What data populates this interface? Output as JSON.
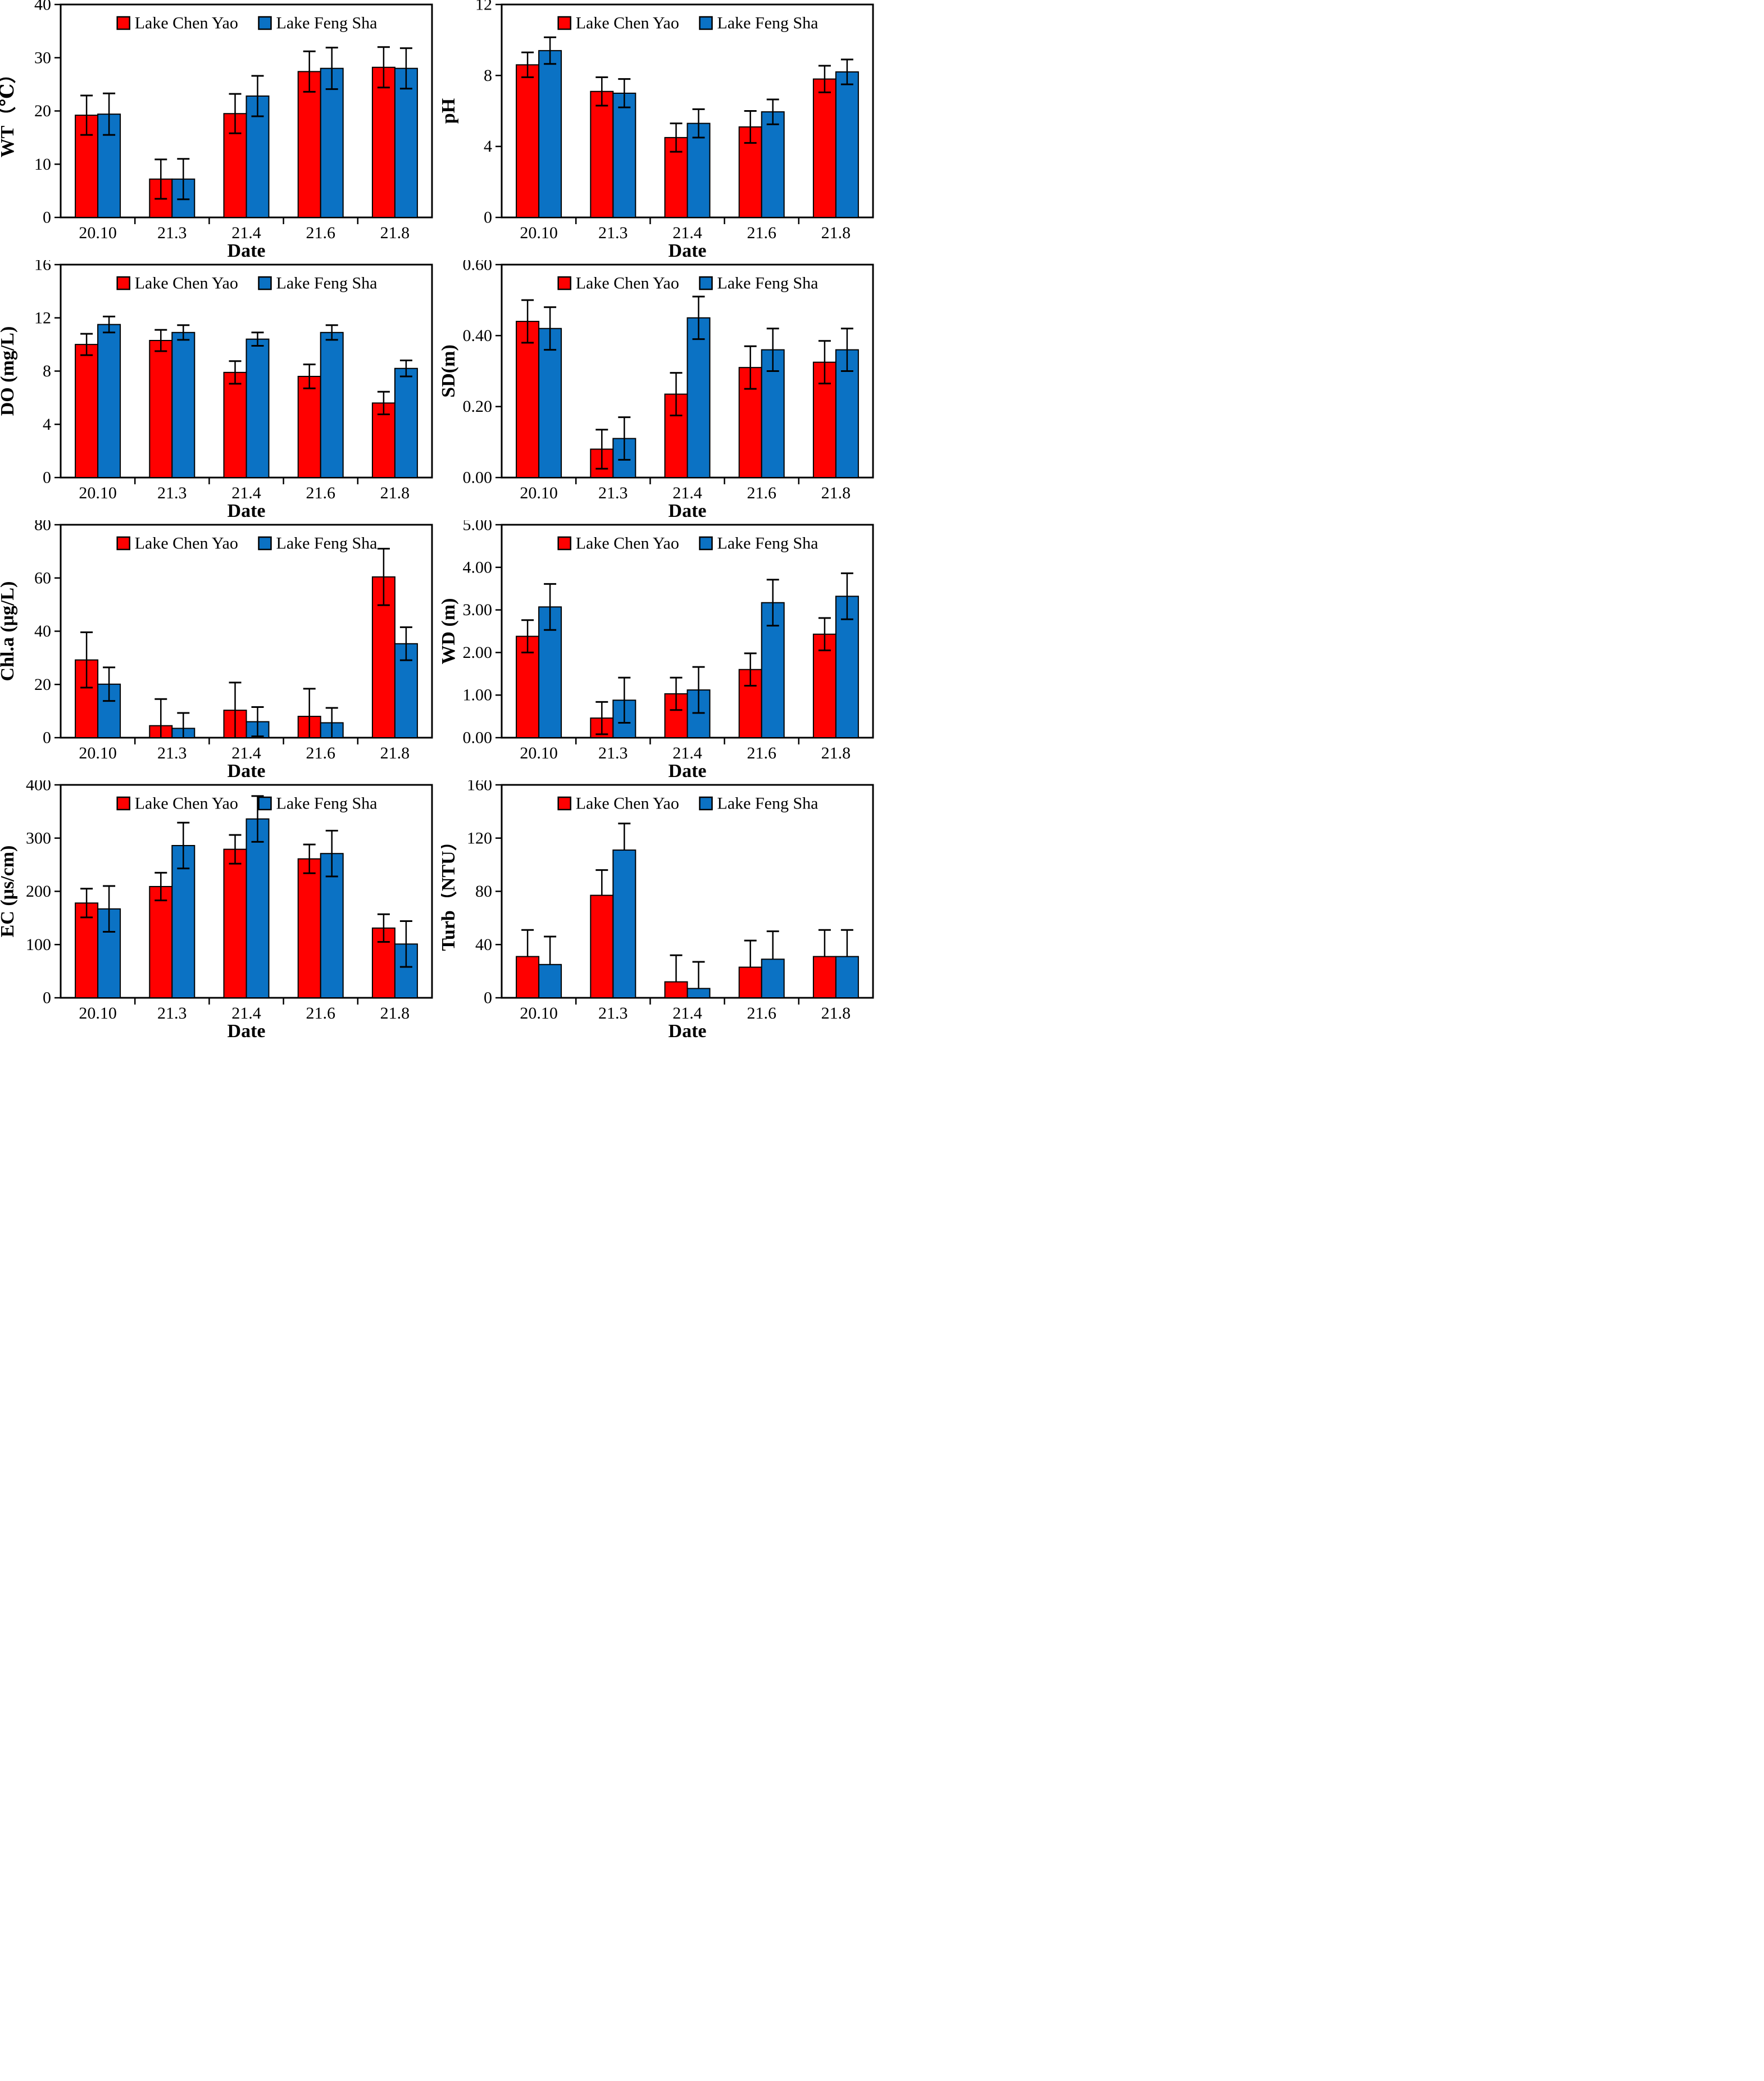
{
  "page": {
    "title": "Lake water quality seasonal bar charts",
    "background": "#FFFFFF"
  },
  "colors": {
    "series_red": "#FF0000",
    "series_blue": "#0B72C4",
    "axis": "#000000",
    "error_bar": "#000000"
  },
  "legend": {
    "items": [
      {
        "label": "Lake Chen Yao",
        "color": "#FF0000"
      },
      {
        "label": "Lake Feng Sha",
        "color": "#0B72C4"
      }
    ],
    "position": "top-center"
  },
  "chart_data": [
    {
      "id": "wt",
      "type": "bar",
      "title": "",
      "xlabel": "Date",
      "ylabel": "WT（℃）",
      "ylim": [
        0,
        40
      ],
      "ytick_vals": [
        0,
        10,
        20,
        30,
        40
      ],
      "ytick_labels": [
        "0",
        "10",
        "20",
        "30",
        "40"
      ],
      "categories": [
        "20.10",
        "21.3",
        "21.4",
        "21.6",
        "21.8"
      ],
      "grid": false,
      "legend_position": "top-center",
      "error_dir": "both",
      "series": [
        {
          "name": "Lake Chen Yao",
          "color": "#FF0000",
          "values": [
            19.2,
            7.2,
            19.5,
            27.4,
            28.2
          ],
          "errors": [
            3.7,
            3.7,
            3.7,
            3.8,
            3.8
          ]
        },
        {
          "name": "Lake Feng Sha",
          "color": "#0B72C4",
          "values": [
            19.4,
            7.2,
            22.8,
            28.0,
            28.0
          ],
          "errors": [
            3.9,
            3.8,
            3.8,
            3.9,
            3.8
          ]
        }
      ]
    },
    {
      "id": "ph",
      "type": "bar",
      "title": "",
      "xlabel": "Date",
      "ylabel": "pH",
      "ylim": [
        0,
        12
      ],
      "ytick_vals": [
        0,
        4,
        8,
        12
      ],
      "ytick_labels": [
        "0",
        "4",
        "8",
        "12"
      ],
      "categories": [
        "20.10",
        "21.3",
        "21.4",
        "21.6",
        "21.8"
      ],
      "grid": false,
      "legend_position": "top-center",
      "error_dir": "both",
      "series": [
        {
          "name": "Lake Chen Yao",
          "color": "#FF0000",
          "values": [
            8.6,
            7.1,
            4.5,
            5.1,
            7.8
          ],
          "errors": [
            0.7,
            0.8,
            0.8,
            0.9,
            0.75
          ]
        },
        {
          "name": "Lake Feng Sha",
          "color": "#0B72C4",
          "values": [
            9.4,
            7.0,
            5.3,
            5.95,
            8.2
          ],
          "errors": [
            0.75,
            0.8,
            0.8,
            0.7,
            0.7
          ]
        }
      ]
    },
    {
      "id": "do",
      "type": "bar",
      "title": "",
      "xlabel": "Date",
      "ylabel": "DO (mg/L)",
      "ylim": [
        0,
        16
      ],
      "ytick_vals": [
        0,
        4,
        8,
        12,
        16
      ],
      "ytick_labels": [
        "0",
        "4",
        "8",
        "12",
        "16"
      ],
      "categories": [
        "20.10",
        "21.3",
        "21.4",
        "21.6",
        "21.8"
      ],
      "grid": false,
      "legend_position": "top-center",
      "error_dir": "both",
      "series": [
        {
          "name": "Lake Chen Yao",
          "color": "#FF0000",
          "values": [
            10.0,
            10.3,
            7.9,
            7.6,
            5.6
          ],
          "errors": [
            0.8,
            0.8,
            0.85,
            0.9,
            0.85
          ]
        },
        {
          "name": "Lake Feng Sha",
          "color": "#0B72C4",
          "values": [
            11.5,
            10.9,
            10.4,
            10.9,
            8.2
          ],
          "errors": [
            0.6,
            0.55,
            0.5,
            0.55,
            0.6
          ]
        }
      ]
    },
    {
      "id": "sd",
      "type": "bar",
      "title": "",
      "xlabel": "Date",
      "ylabel": "SD(m)",
      "ylim": [
        0,
        0.6
      ],
      "ytick_vals": [
        0,
        0.2,
        0.4,
        0.6
      ],
      "ytick_labels": [
        "0.00",
        "0.20",
        "0.40",
        "0.60"
      ],
      "categories": [
        "20.10",
        "21.3",
        "21.4",
        "21.6",
        "21.8"
      ],
      "grid": false,
      "legend_position": "top-center",
      "error_dir": "both",
      "series": [
        {
          "name": "Lake Chen Yao",
          "color": "#FF0000",
          "values": [
            0.44,
            0.08,
            0.235,
            0.31,
            0.325
          ],
          "errors": [
            0.06,
            0.055,
            0.06,
            0.06,
            0.06
          ]
        },
        {
          "name": "Lake Feng Sha",
          "color": "#0B72C4",
          "values": [
            0.42,
            0.11,
            0.45,
            0.36,
            0.36
          ],
          "errors": [
            0.06,
            0.06,
            0.06,
            0.06,
            0.06
          ]
        }
      ]
    },
    {
      "id": "chla",
      "type": "bar",
      "title": "",
      "xlabel": "Date",
      "ylabel": "Chl.a (μg/L)",
      "ylim": [
        0,
        80
      ],
      "ytick_vals": [
        0,
        20,
        40,
        60,
        80
      ],
      "ytick_labels": [
        "0",
        "20",
        "40",
        "60",
        "80"
      ],
      "categories": [
        "20.10",
        "21.3",
        "21.4",
        "21.6",
        "21.8"
      ],
      "grid": false,
      "legend_position": "top-center",
      "error_dir": "both",
      "series": [
        {
          "name": "Lake Chen Yao",
          "color": "#FF0000",
          "values": [
            29.2,
            4.5,
            10.3,
            8.0,
            60.4
          ],
          "errors": [
            10.4,
            10.0,
            10.4,
            10.4,
            10.6
          ]
        },
        {
          "name": "Lake Feng Sha",
          "color": "#0B72C4",
          "values": [
            20.1,
            3.5,
            6.0,
            5.6,
            35.3
          ],
          "errors": [
            6.3,
            5.8,
            5.5,
            5.6,
            6.2
          ]
        }
      ]
    },
    {
      "id": "wd",
      "type": "bar",
      "title": "",
      "xlabel": "Date",
      "ylabel": "WD (m)",
      "ylim": [
        0,
        5.0
      ],
      "ytick_vals": [
        0,
        1,
        2,
        3,
        4,
        5
      ],
      "ytick_labels": [
        "0.00",
        "1.00",
        "2.00",
        "3.00",
        "4.00",
        "5.00"
      ],
      "categories": [
        "20.10",
        "21.3",
        "21.4",
        "21.6",
        "21.8"
      ],
      "grid": false,
      "legend_position": "top-center",
      "error_dir": "both",
      "series": [
        {
          "name": "Lake Chen Yao",
          "color": "#FF0000",
          "values": [
            2.38,
            0.46,
            1.03,
            1.6,
            2.43
          ],
          "errors": [
            0.38,
            0.38,
            0.38,
            0.38,
            0.38
          ]
        },
        {
          "name": "Lake Feng Sha",
          "color": "#0B72C4",
          "values": [
            3.07,
            0.88,
            1.12,
            3.17,
            3.32
          ],
          "errors": [
            0.54,
            0.53,
            0.54,
            0.54,
            0.54
          ]
        }
      ]
    },
    {
      "id": "ec",
      "type": "bar",
      "title": "",
      "xlabel": "Date",
      "ylabel": "EC (μs/cm)",
      "ylim": [
        0,
        400
      ],
      "ytick_vals": [
        0,
        100,
        200,
        300,
        400
      ],
      "ytick_labels": [
        "0",
        "100",
        "200",
        "300",
        "400"
      ],
      "categories": [
        "20.10",
        "21.3",
        "21.4",
        "21.6",
        "21.8"
      ],
      "grid": false,
      "legend_position": "top-center",
      "error_dir": "both",
      "series": [
        {
          "name": "Lake Chen Yao",
          "color": "#FF0000",
          "values": [
            178,
            209,
            279,
            261,
            131
          ],
          "errors": [
            27,
            26,
            27,
            27,
            26
          ]
        },
        {
          "name": "Lake Feng Sha",
          "color": "#0B72C4",
          "values": [
            167,
            286,
            336,
            271,
            101
          ],
          "errors": [
            43,
            43,
            43,
            43,
            43
          ]
        }
      ]
    },
    {
      "id": "turb",
      "type": "bar",
      "title": "",
      "xlabel": "Date",
      "ylabel": "Turb（NTU）",
      "ylim": [
        0,
        160
      ],
      "ytick_vals": [
        0,
        40,
        80,
        120,
        160
      ],
      "ytick_labels": [
        "0",
        "40",
        "80",
        "120",
        "160"
      ],
      "categories": [
        "20.10",
        "21.3",
        "21.4",
        "21.6",
        "21.8"
      ],
      "grid": false,
      "legend_position": "top-center",
      "error_dir": "up",
      "series": [
        {
          "name": "Lake Chen Yao",
          "color": "#FF0000",
          "values": [
            31,
            77,
            12,
            23,
            31
          ],
          "errors": [
            20,
            19,
            20,
            20,
            20
          ]
        },
        {
          "name": "Lake Feng Sha",
          "color": "#0B72C4",
          "values": [
            25,
            111,
            7,
            29,
            31
          ],
          "errors": [
            21,
            20,
            20,
            21,
            20
          ]
        }
      ]
    }
  ]
}
